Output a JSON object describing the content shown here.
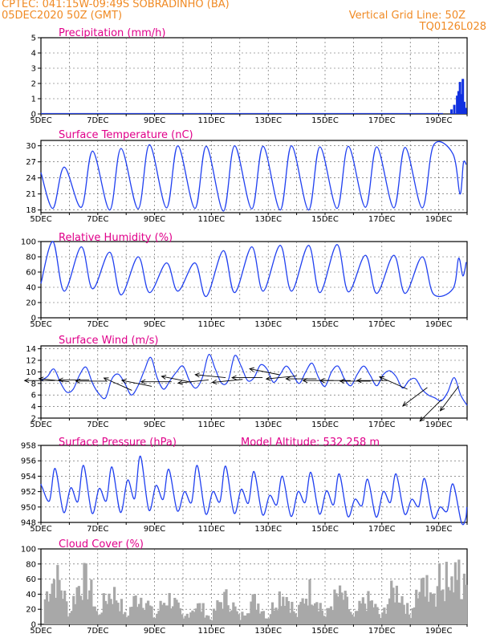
{
  "header": {
    "line1": "CPTEC:   041:15W-09:49S   SOBRADINHO (BA)",
    "line2": "05DEC2020 50Z (GMT)",
    "right1": "Vertical Grid Line: 50Z",
    "right2": "TQ0126L028"
  },
  "colors": {
    "line": "#2040f0",
    "bar_precip": "#1030e0",
    "bar_cloud": "#a8a8a8",
    "title": "#e0008a",
    "header": "#f08a24",
    "wind_arrow": "#000000"
  },
  "x_axis": {
    "start_day": 5,
    "end_day": 20,
    "labels": [
      "5DEC",
      "7DEC",
      "9DEC",
      "11DEC",
      "13DEC",
      "15DEC",
      "17DEC",
      "19DEC"
    ]
  },
  "chart_data": [
    {
      "id": "precip",
      "type": "bar",
      "title": "Precipitation (mm/h)",
      "ylim": [
        0,
        5
      ],
      "yticks": [
        0,
        1,
        2,
        3,
        4,
        5
      ],
      "grid": true,
      "x": [
        19.45,
        19.55,
        19.65,
        19.7,
        19.75,
        19.8,
        19.85,
        19.9,
        19.95
      ],
      "values": [
        0.3,
        0.6,
        1.2,
        1.5,
        2.1,
        1.3,
        2.3,
        0.8,
        0.4
      ]
    },
    {
      "id": "temp",
      "type": "line",
      "title": "Surface Temperature (nC)",
      "ylim": [
        17.5,
        31
      ],
      "yticks": [
        18,
        21,
        24,
        27,
        30
      ],
      "grid": true,
      "daily": {
        "min": [
          18.3,
          18.5,
          18.0,
          18.2,
          18.4,
          18.3,
          17.8,
          18.2,
          18.0,
          18.0,
          18.3,
          18.5,
          18.4,
          18.4,
          21.5
        ],
        "max": [
          26.0,
          29.0,
          29.5,
          30.2,
          30.0,
          29.9,
          30.0,
          29.9,
          30.0,
          29.8,
          29.9,
          29.8,
          29.7,
          30.1,
          30.4
        ]
      },
      "tail": [
        [
          19.5,
          28.5
        ],
        [
          19.75,
          21.0
        ],
        [
          19.87,
          26.8
        ],
        [
          19.97,
          26.5
        ]
      ]
    },
    {
      "id": "rh",
      "type": "line",
      "title": "Relative Humidity (%)",
      "ylim": [
        0,
        100
      ],
      "yticks": [
        0,
        20,
        40,
        60,
        80,
        100
      ],
      "grid": true,
      "daily": {
        "max": [
          100,
          93,
          86,
          80,
          72,
          72,
          88,
          93,
          95,
          95,
          96,
          82,
          82,
          80,
          75
        ],
        "min": [
          35,
          38,
          30,
          33,
          35,
          28,
          33,
          35,
          35,
          33,
          34,
          32,
          32,
          31,
          55
        ]
      },
      "tail": [
        [
          19.5,
          38.0
        ],
        [
          19.7,
          78.0
        ],
        [
          19.85,
          55.0
        ],
        [
          19.97,
          73.0
        ]
      ]
    },
    {
      "id": "wind",
      "type": "line",
      "title": "Surface Wind (m/s)",
      "ylim": [
        2,
        14.5
      ],
      "yticks": [
        2,
        4,
        6,
        8,
        10,
        12,
        14
      ],
      "grid": true,
      "values": [
        8.5,
        9.2,
        10.5,
        8.2,
        6.5,
        7.0,
        9.5,
        10.8,
        8.0,
        6.2,
        5.5,
        8.8,
        9.6,
        8.0,
        6.0,
        7.5,
        10.2,
        12.5,
        9.0,
        7.0,
        8.5,
        10.0,
        11.0,
        8.5,
        7.2,
        9.0,
        13.0,
        10.5,
        8.0,
        8.5,
        12.8,
        11.0,
        8.5,
        9.0,
        11.2,
        10.5,
        8.2,
        9.5,
        11.0,
        9.6,
        8.0,
        10.0,
        11.5,
        9.0,
        7.5,
        10.0,
        11.0,
        8.8,
        7.6,
        9.6,
        11.0,
        9.4,
        7.6,
        9.5,
        10.2,
        9.2,
        7.2,
        8.5,
        8.8,
        7.0,
        6.0,
        5.5,
        5.0,
        6.5,
        9.0,
        6.0,
        4.2
      ],
      "arrows": [
        {
          "x": 5.5,
          "y": 8.5,
          "u": 1.0,
          "v": 0.0
        },
        {
          "x": 6.0,
          "y": 8.3,
          "u": 1.0,
          "v": -0.1
        },
        {
          "x": 6.7,
          "y": 8.6,
          "u": 1.0,
          "v": 0.0
        },
        {
          "x": 7.3,
          "y": 8.4,
          "u": 1.0,
          "v": 0.0
        },
        {
          "x": 8.2,
          "y": 6.8,
          "u": 0.9,
          "v": -0.4
        },
        {
          "x": 8.9,
          "y": 7.5,
          "u": 1.0,
          "v": -0.2
        },
        {
          "x": 9.6,
          "y": 8.3,
          "u": 1.0,
          "v": 0.0
        },
        {
          "x": 10.3,
          "y": 8.2,
          "u": 1.0,
          "v": -0.2
        },
        {
          "x": 10.9,
          "y": 8.6,
          "u": 1.0,
          "v": 0.1
        },
        {
          "x": 11.5,
          "y": 9.0,
          "u": 1.0,
          "v": -0.1
        },
        {
          "x": 12.1,
          "y": 8.7,
          "u": 1.0,
          "v": 0.1
        },
        {
          "x": 12.8,
          "y": 9.0,
          "u": 1.0,
          "v": 0.0
        },
        {
          "x": 13.4,
          "y": 9.5,
          "u": 1.0,
          "v": -0.2
        },
        {
          "x": 14.0,
          "y": 9.3,
          "u": 1.0,
          "v": 0.1
        },
        {
          "x": 14.7,
          "y": 8.8,
          "u": 1.0,
          "v": 0.0
        },
        {
          "x": 15.3,
          "y": 8.5,
          "u": 1.0,
          "v": 0.0
        },
        {
          "x": 15.9,
          "y": 8.5,
          "u": 1.0,
          "v": 0.0
        },
        {
          "x": 16.6,
          "y": 8.4,
          "u": 1.0,
          "v": 0.0
        },
        {
          "x": 17.2,
          "y": 8.5,
          "u": 1.0,
          "v": 0.0
        },
        {
          "x": 17.9,
          "y": 7.0,
          "u": 0.9,
          "v": -0.4
        },
        {
          "x": 18.6,
          "y": 7.3,
          "u": 0.8,
          "v": 0.6
        },
        {
          "x": 19.1,
          "y": 5.2,
          "u": 0.7,
          "v": 0.7
        },
        {
          "x": 19.7,
          "y": 7.5,
          "u": 0.6,
          "v": 0.8
        }
      ]
    },
    {
      "id": "pressure",
      "type": "line",
      "title": "Surface Pressure (hPa)",
      "subtitle": "Model Altitude: 532.258 m",
      "ylim": [
        948,
        958
      ],
      "yticks": [
        948,
        950,
        952,
        954,
        956,
        958
      ],
      "grid": true,
      "daily": {
        "max": [
          955.0,
          955.4,
          955.2,
          956.6,
          954.9,
          955.4,
          955.3,
          954.6,
          954.0,
          954.5,
          954.3,
          953.6,
          954.3,
          953.7,
          953.0
        ],
        "mid": [
          952.5,
          952.5,
          952.4,
          953.5,
          952.8,
          952.0,
          952.0,
          952.3,
          951.5,
          952.0,
          952.1,
          951.0,
          952.0,
          951.0,
          950.0
        ],
        "min": [
          949.3,
          949.2,
          949.3,
          949.6,
          949.5,
          949.1,
          949.2,
          949.0,
          948.8,
          949.1,
          948.8,
          948.7,
          949.1,
          948.6,
          948.0
        ]
      },
      "tail": [
        [
          19.95,
          948.5
        ],
        [
          19.99,
          950.0
        ]
      ]
    },
    {
      "id": "cloud",
      "type": "bar",
      "title": "Cloud Cover (%)",
      "ylim": [
        0,
        100
      ],
      "yticks": [
        0,
        20,
        40,
        60,
        80,
        100
      ],
      "grid": true,
      "daily_max": [
        88,
        85,
        60,
        55,
        50,
        35,
        50,
        45,
        60,
        65,
        55,
        45,
        65,
        85,
        100
      ]
    }
  ]
}
